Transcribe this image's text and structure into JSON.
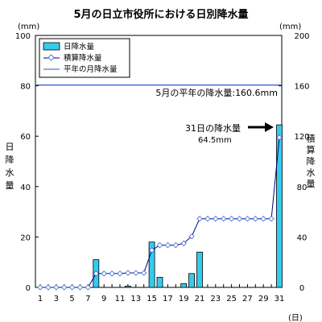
{
  "chart_data": {
    "type": "bar",
    "title": "5月の日立市役所における日別降水量",
    "x_unit": "(日)",
    "y_left_unit": "(mm)",
    "y_right_unit": "(mm)",
    "y_left_label": "日降水量",
    "y_right_label": "積算降水量",
    "ylim_left": [
      0,
      100
    ],
    "ylim_right": [
      0,
      200
    ],
    "yticks_left": [
      0,
      20,
      40,
      60,
      80,
      100
    ],
    "yticks_right": [
      0,
      40,
      80,
      120,
      160,
      200
    ],
    "xticks": [
      1,
      3,
      5,
      7,
      9,
      11,
      13,
      15,
      17,
      19,
      21,
      23,
      25,
      27,
      29,
      31
    ],
    "days": [
      1,
      2,
      3,
      4,
      5,
      6,
      7,
      8,
      9,
      10,
      11,
      12,
      13,
      14,
      15,
      16,
      17,
      18,
      19,
      20,
      21,
      22,
      23,
      24,
      25,
      26,
      27,
      28,
      29,
      30,
      31
    ],
    "series": [
      {
        "name": "日降水量",
        "kind": "bar",
        "axis": "left",
        "color": "#33ccee",
        "values": [
          0,
          0,
          0,
          0,
          0,
          0,
          0,
          11,
          0,
          0,
          0,
          0.5,
          0,
          0,
          18,
          4,
          0,
          0,
          1.5,
          5.5,
          14,
          0,
          0,
          0,
          0,
          0,
          0,
          0,
          0,
          0,
          64.5
        ]
      },
      {
        "name": "積算降水量",
        "kind": "line",
        "axis": "right",
        "color": "#000080",
        "values": [
          0,
          0,
          0,
          0,
          0,
          0,
          0,
          11,
          11,
          11,
          11,
          11.5,
          11.5,
          11.5,
          29.5,
          33.5,
          33.5,
          33.5,
          35,
          40.5,
          54.5,
          54.5,
          54.5,
          54.5,
          54.5,
          54.5,
          54.5,
          54.5,
          54.5,
          54.5,
          119
        ]
      },
      {
        "name": "平年の月降水量",
        "kind": "hline",
        "axis": "right",
        "color": "#3355cc",
        "value": 160.6
      }
    ],
    "annotations": {
      "normal_label": "5月の平年の降水量:160.6mm",
      "day31_label": "31日の降水量",
      "day31_value": "64.5mm"
    },
    "legend_position": "top-left",
    "grid": false
  }
}
